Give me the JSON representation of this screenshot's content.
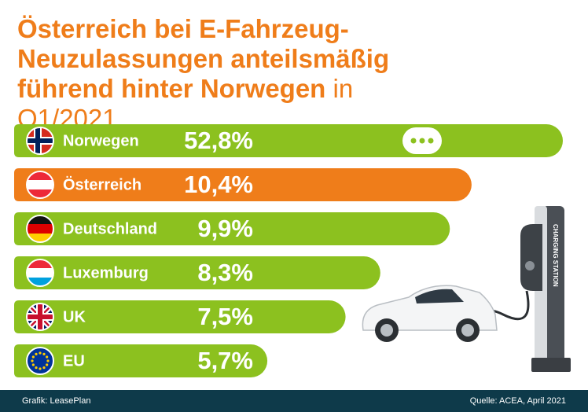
{
  "chart_data": {
    "type": "bar",
    "orientation": "horizontal",
    "title": "Österreich bei E-Fahrzeug-Neuzulassungen anteilsmäßig führend hinter Norwegen",
    "title_period": "in Q1/2021",
    "categories": [
      "Norwegen",
      "Österreich",
      "Deutschland",
      "Luxemburg",
      "UK",
      "EU"
    ],
    "values": [
      52.8,
      10.4,
      9.9,
      8.3,
      7.5,
      5.7
    ],
    "value_labels": [
      "52,8%",
      "10,4%",
      "9,9%",
      "8,3%",
      "7,5%",
      "5,7%"
    ],
    "colors": [
      "#8cc11f",
      "#ef7d1a",
      "#8cc11f",
      "#8cc11f",
      "#8cc11f",
      "#8cc11f"
    ],
    "xlim": [
      0,
      12.5
    ],
    "axis_break": true,
    "illustration_label": "CHARGING STATION",
    "credit": "Grafik: LeasePlan",
    "source": "Quelle: ACEA, April 2021"
  }
}
